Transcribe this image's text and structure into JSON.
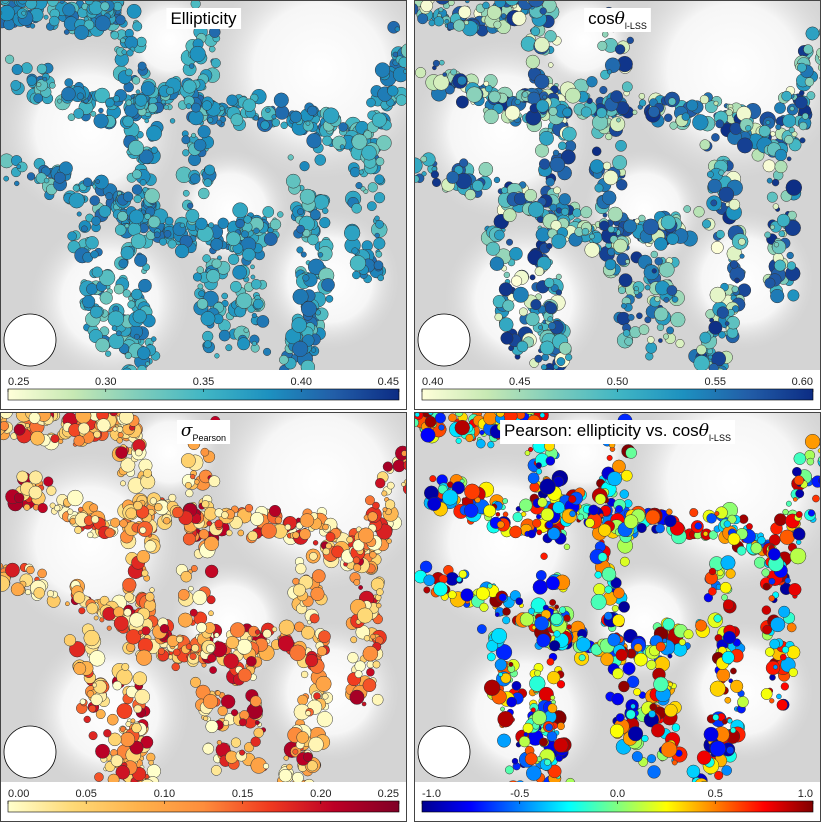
{
  "chart_data": [
    {
      "type": "halo-map",
      "title": "Ellipticity",
      "colormap": [
        "#ffffd9",
        "#c7e9b4",
        "#7fcdbb",
        "#41b6c4",
        "#1d91c0",
        "#225ea8",
        "#0c2c84"
      ],
      "xlim": [
        0.25,
        0.45
      ],
      "xticks": [
        0.25,
        {
          "value": 0.3,
          "label": "0.30"
        },
        0.35,
        {
          "value": 0.4,
          "label": "0.40"
        },
        0.45
      ]
    },
    {
      "type": "halo-map",
      "title": "cos",
      "title_symbol": "θ",
      "title_subscript": "l-LSS",
      "colormap": [
        "#ffffd9",
        "#c7e9b4",
        "#7fcdbb",
        "#41b6c4",
        "#1d91c0",
        "#225ea8",
        "#0c2c84"
      ],
      "xlim": [
        0.4,
        0.6
      ],
      "xticks": [
        {
          "value": 0.4,
          "label": "0.40"
        },
        0.45,
        {
          "value": 0.5,
          "label": "0.50"
        },
        0.55,
        {
          "value": 0.6,
          "label": "0.60"
        }
      ]
    },
    {
      "type": "halo-map",
      "title_symbol": "σ",
      "title_subscript": "Pearson",
      "colormap": [
        "#ffffcc",
        "#fed976",
        "#feb24c",
        "#fd8d3c",
        "#f03b20",
        "#bd0026",
        "#800026"
      ],
      "xlim": [
        0,
        0.25
      ],
      "xticks": [
        {
          "value": 0,
          "label": "0.00"
        },
        0.05,
        {
          "value": 0.1,
          "label": "0.10"
        },
        0.15,
        {
          "value": 0.2,
          "label": "0.20"
        },
        0.25
      ]
    },
    {
      "type": "halo-map",
      "title": "Pearson: ellipticity vs. cos",
      "title_symbol": "θ",
      "title_subscript": "l-LSS",
      "colormap": [
        "#00008f",
        "#0000ff",
        "#0080ff",
        "#00ffff",
        "#80ff80",
        "#ffff00",
        "#ff8000",
        "#ff0000",
        "#800000"
      ],
      "xlim": [
        -1,
        1
      ],
      "xticks": [
        {
          "value": -1,
          "label": "-1.0"
        },
        -0.5,
        {
          "value": 0,
          "label": "0.0"
        },
        0.5,
        {
          "value": 1,
          "label": "1.0"
        }
      ]
    }
  ]
}
